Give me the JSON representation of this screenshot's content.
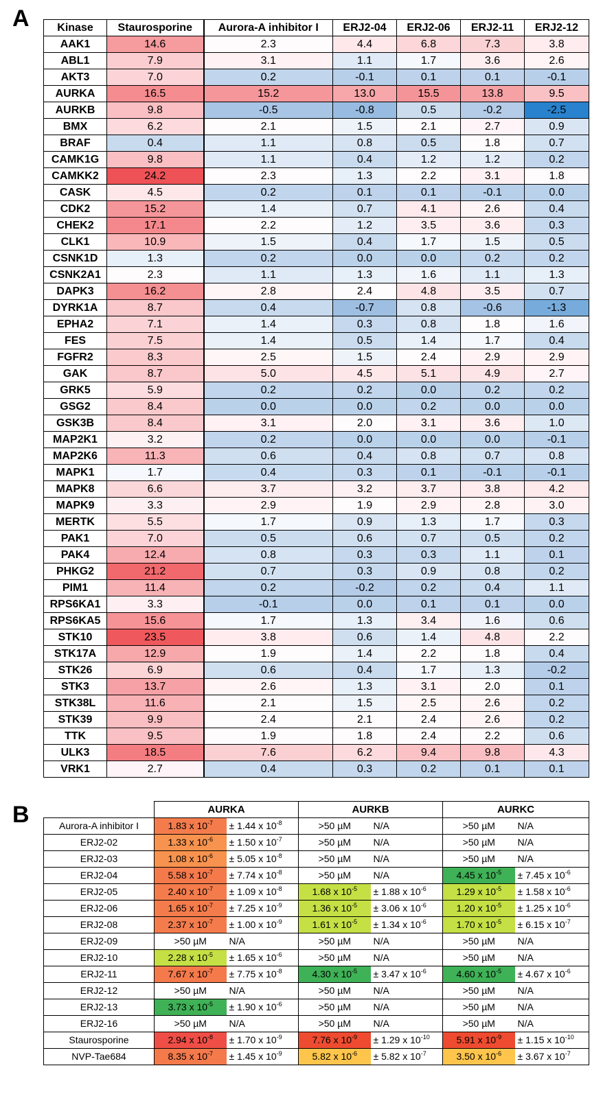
{
  "panelA": {
    "letter": "A",
    "headers": [
      "Kinase",
      "Staurosporine",
      "Aurora-A inhibitor I",
      "ERJ2-04",
      "ERJ2-06",
      "ERJ2-11",
      "ERJ2-12"
    ],
    "rows": [
      [
        "AAK1",
        "14.6",
        "2.3",
        "4.4",
        "6.8",
        "7.3",
        "3.8"
      ],
      [
        "ABL1",
        "7.9",
        "3.1",
        "1.1",
        "1.7",
        "3.6",
        "2.6"
      ],
      [
        "AKT3",
        "7.0",
        "0.2",
        "-0.1",
        "0.1",
        "0.1",
        "-0.1"
      ],
      [
        "AURKA",
        "16.5",
        "15.2",
        "13.0",
        "15.5",
        "13.8",
        "9.5"
      ],
      [
        "AURKB",
        "9.8",
        "-0.5",
        "-0.8",
        "0.5",
        "-0.2",
        "-2.5"
      ],
      [
        "BMX",
        "6.2",
        "2.1",
        "1.5",
        "2.1",
        "2.7",
        "0.9"
      ],
      [
        "BRAF",
        "0.4",
        "1.1",
        "0.8",
        "0.5",
        "1.8",
        "0.7"
      ],
      [
        "CAMK1G",
        "9.8",
        "1.1",
        "0.4",
        "1.2",
        "1.2",
        "0.2"
      ],
      [
        "CAMKK2",
        "24.2",
        "2.3",
        "1.3",
        "2.2",
        "3.1",
        "1.8"
      ],
      [
        "CASK",
        "4.5",
        "0.2",
        "0.1",
        "0.1",
        "-0.1",
        "0.0"
      ],
      [
        "CDK2",
        "15.2",
        "1.4",
        "0.7",
        "4.1",
        "2.6",
        "0.4"
      ],
      [
        "CHEK2",
        "17.1",
        "2.2",
        "1.2",
        "3.5",
        "3.6",
        "0.3"
      ],
      [
        "CLK1",
        "10.9",
        "1.5",
        "0.4",
        "1.7",
        "1.5",
        "0.5"
      ],
      [
        "CSNK1D",
        "1.3",
        "0.2",
        "0.0",
        "0.0",
        "0.2",
        "0.2"
      ],
      [
        "CSNK2A1",
        "2.3",
        "1.1",
        "1.3",
        "1.6",
        "1.1",
        "1.3"
      ],
      [
        "DAPK3",
        "16.2",
        "2.8",
        "2.4",
        "4.8",
        "3.5",
        "0.7"
      ],
      [
        "DYRK1A",
        "8.7",
        "0.4",
        "-0.7",
        "0.8",
        "-0.6",
        "-1.3"
      ],
      [
        "EPHA2",
        "7.1",
        "1.4",
        "0.3",
        "0.8",
        "1.8",
        "1.6"
      ],
      [
        "FES",
        "7.5",
        "1.4",
        "0.5",
        "1.4",
        "1.7",
        "0.4"
      ],
      [
        "FGFR2",
        "8.3",
        "2.5",
        "1.5",
        "2.4",
        "2.9",
        "2.9"
      ],
      [
        "GAK",
        "8.7",
        "5.0",
        "4.5",
        "5.1",
        "4.9",
        "2.7"
      ],
      [
        "GRK5",
        "5.9",
        "0.2",
        "0.2",
        "0.0",
        "0.2",
        "0.2"
      ],
      [
        "GSG2",
        "8.4",
        "0.0",
        "0.0",
        "0.2",
        "0.0",
        "0.0"
      ],
      [
        "GSK3B",
        "8.4",
        "3.1",
        "2.0",
        "3.1",
        "3.6",
        "1.0"
      ],
      [
        "MAP2K1",
        "3.2",
        "0.2",
        "0.0",
        "0.0",
        "0.0",
        "-0.1"
      ],
      [
        "MAP2K6",
        "11.3",
        "0.6",
        "0.4",
        "0.8",
        "0.7",
        "0.8"
      ],
      [
        "MAPK1",
        "1.7",
        "0.4",
        "0.3",
        "0.1",
        "-0.1",
        "-0.1"
      ],
      [
        "MAPK8",
        "6.6",
        "3.7",
        "3.2",
        "3.7",
        "3.8",
        "4.2"
      ],
      [
        "MAPK9",
        "3.3",
        "2.9",
        "1.9",
        "2.9",
        "2.8",
        "3.0"
      ],
      [
        "MERTK",
        "5.5",
        "1.7",
        "0.9",
        "1.3",
        "1.7",
        "0.3"
      ],
      [
        "PAK1",
        "7.0",
        "0.5",
        "0.6",
        "0.7",
        "0.5",
        "0.2"
      ],
      [
        "PAK4",
        "12.4",
        "0.8",
        "0.3",
        "0.3",
        "1.1",
        "0.1"
      ],
      [
        "PHKG2",
        "21.2",
        "0.7",
        "0.3",
        "0.9",
        "0.8",
        "0.2"
      ],
      [
        "PIM1",
        "11.4",
        "0.2",
        "-0.2",
        "0.2",
        "0.4",
        "1.1"
      ],
      [
        "RPS6KA1",
        "3.3",
        "-0.1",
        "0.0",
        "0.1",
        "0.1",
        "0.0"
      ],
      [
        "RPS6KA5",
        "15.6",
        "1.7",
        "1.3",
        "3.4",
        "1.6",
        "0.6"
      ],
      [
        "STK10",
        "23.5",
        "3.8",
        "0.6",
        "1.4",
        "4.8",
        "2.2"
      ],
      [
        "STK17A",
        "12.9",
        "1.9",
        "1.4",
        "2.2",
        "1.8",
        "0.4"
      ],
      [
        "STK26",
        "6.9",
        "0.6",
        "0.4",
        "1.7",
        "1.3",
        "-0.2"
      ],
      [
        "STK3",
        "13.7",
        "2.6",
        "1.3",
        "3.1",
        "2.0",
        "0.1"
      ],
      [
        "STK38L",
        "11.6",
        "2.1",
        "1.5",
        "2.5",
        "2.6",
        "0.2"
      ],
      [
        "STK39",
        "9.9",
        "2.4",
        "2.1",
        "2.4",
        "2.6",
        "0.2"
      ],
      [
        "TTK",
        "9.5",
        "1.9",
        "1.8",
        "2.4",
        "2.2",
        "0.6"
      ],
      [
        "ULK3",
        "18.5",
        "7.6",
        "6.2",
        "9.4",
        "9.8",
        "4.3"
      ],
      [
        "VRK1",
        "2.7",
        "0.4",
        "0.3",
        "0.2",
        "0.1",
        "0.1"
      ]
    ]
  },
  "panelB": {
    "letter": "B",
    "targets": [
      "AURKA",
      "AURKB",
      "AURKC"
    ],
    "rows": [
      {
        "compound": "Aurora-A inhibitor I",
        "cells": [
          {
            "m": "1.83",
            "me": "-7",
            "em": "± 1.44",
            "ee": "-8",
            "c": "#f47c4c"
          },
          {
            "v": ">50 µM",
            "e": "N/A"
          },
          {
            "v": ">50 µM",
            "e": "N/A"
          }
        ]
      },
      {
        "compound": "ERJ2-02",
        "cells": [
          {
            "m": "1.33",
            "me": "-6",
            "em": "± 1.50",
            "ee": "-7",
            "c": "#f7934e"
          },
          {
            "v": ">50 µM",
            "e": "N/A"
          },
          {
            "v": ">50 µM",
            "e": "N/A"
          }
        ]
      },
      {
        "compound": "ERJ2-03",
        "cells": [
          {
            "m": "1.08",
            "me": "-6",
            "em": "± 5.05",
            "ee": "-8",
            "c": "#f7934e"
          },
          {
            "v": ">50 µM",
            "e": "N/A"
          },
          {
            "v": ">50 µM",
            "e": "N/A"
          }
        ]
      },
      {
        "compound": "ERJ2-04",
        "cells": [
          {
            "m": "5.58",
            "me": "-7",
            "em": "± 7.74",
            "ee": "-8",
            "c": "#f4794b"
          },
          {
            "v": ">50 µM",
            "e": "N/A"
          },
          {
            "m": "4.45",
            "me": "-5",
            "em": "± 7.45",
            "ee": "-6",
            "c": "#3fb156"
          }
        ]
      },
      {
        "compound": "ERJ2-05",
        "cells": [
          {
            "m": "2.40",
            "me": "-7",
            "em": "± 1.09",
            "ee": "-8",
            "c": "#f47c4c"
          },
          {
            "m": "1.68",
            "me": "-5",
            "em": "± 1.88",
            "ee": "-6",
            "c": "#c5e045"
          },
          {
            "m": "1.29",
            "me": "-5",
            "em": "± 1.58",
            "ee": "-6",
            "c": "#c5e045"
          }
        ]
      },
      {
        "compound": "ERJ2-06",
        "cells": [
          {
            "m": "1.65",
            "me": "-7",
            "em": "± 7.25",
            "ee": "-9",
            "c": "#f47c4c"
          },
          {
            "m": "1.36",
            "me": "-5",
            "em": "± 3.06",
            "ee": "-6",
            "c": "#c5e045"
          },
          {
            "m": "1.20",
            "me": "-5",
            "em": "± 1.25",
            "ee": "-6",
            "c": "#c5e045"
          }
        ]
      },
      {
        "compound": "ERJ2-08",
        "cells": [
          {
            "m": "2.37",
            "me": "-7",
            "em": "± 1.00",
            "ee": "-9",
            "c": "#f47c4c"
          },
          {
            "m": "1.61",
            "me": "-5",
            "em": "± 1.34",
            "ee": "-6",
            "c": "#c5e045"
          },
          {
            "m": "1.70",
            "me": "-5",
            "em": "± 6.15",
            "ee": "-7",
            "c": "#c5e045"
          }
        ]
      },
      {
        "compound": "ERJ2-09",
        "cells": [
          {
            "v": ">50 µM",
            "e": "N/A"
          },
          {
            "v": ">50 µM",
            "e": "N/A"
          },
          {
            "v": ">50 µM",
            "e": "N/A"
          }
        ]
      },
      {
        "compound": "ERJ2-10",
        "cells": [
          {
            "m": "2.28",
            "me": "-5",
            "em": "± 1.65",
            "ee": "-6",
            "c": "#c5e045"
          },
          {
            "v": ">50 µM",
            "e": "N/A"
          },
          {
            "v": ">50 µM",
            "e": "N/A"
          }
        ]
      },
      {
        "compound": "ERJ2-11",
        "cells": [
          {
            "m": "7.67",
            "me": "-7",
            "em": "± 7.75",
            "ee": "-8",
            "c": "#f4794b"
          },
          {
            "m": "4.30",
            "me": "-5",
            "em": "± 3.47",
            "ee": "-6",
            "c": "#3fb156"
          },
          {
            "m": "4.60",
            "me": "-5",
            "em": "± 4.67",
            "ee": "-6",
            "c": "#3fb156"
          }
        ]
      },
      {
        "compound": "ERJ2-12",
        "cells": [
          {
            "v": ">50 µM",
            "e": "N/A"
          },
          {
            "v": ">50 µM",
            "e": "N/A"
          },
          {
            "v": ">50 µM",
            "e": "N/A"
          }
        ]
      },
      {
        "compound": "ERJ2-13",
        "cells": [
          {
            "m": "3.73",
            "me": "-5",
            "em": "± 1.90",
            "ee": "-6",
            "c": "#3fb156"
          },
          {
            "v": ">50 µM",
            "e": "N/A"
          },
          {
            "v": ">50 µM",
            "e": "N/A"
          }
        ]
      },
      {
        "compound": "ERJ2-16",
        "cells": [
          {
            "v": ">50 µM",
            "e": "N/A"
          },
          {
            "v": ">50 µM",
            "e": "N/A"
          },
          {
            "v": ">50 µM",
            "e": "N/A"
          }
        ]
      },
      {
        "compound": "Staurosporine",
        "cells": [
          {
            "m": "2.94",
            "me": "-8",
            "em": "± 1.70",
            "ee": "-9",
            "c": "#ef4e46"
          },
          {
            "m": "7.76",
            "me": "-9",
            "em": "± 1.29",
            "ee": "-10",
            "c": "#ee4b30"
          },
          {
            "m": "5.91",
            "me": "-9",
            "em": "± 1.15",
            "ee": "-10",
            "c": "#ee4b30"
          }
        ]
      },
      {
        "compound": "NVP-Tae684",
        "cells": [
          {
            "m": "8.35",
            "me": "-7",
            "em": "± 1.45",
            "ee": "-9",
            "c": "#f4794b"
          },
          {
            "m": "5.82",
            "me": "-6",
            "em": "± 5.82",
            "ee": "-7",
            "c": "#fdc54c"
          },
          {
            "m": "3.50",
            "me": "-6",
            "em": "± 3.67",
            "ee": "-7",
            "c": "#fdc54c"
          }
        ]
      }
    ]
  }
}
